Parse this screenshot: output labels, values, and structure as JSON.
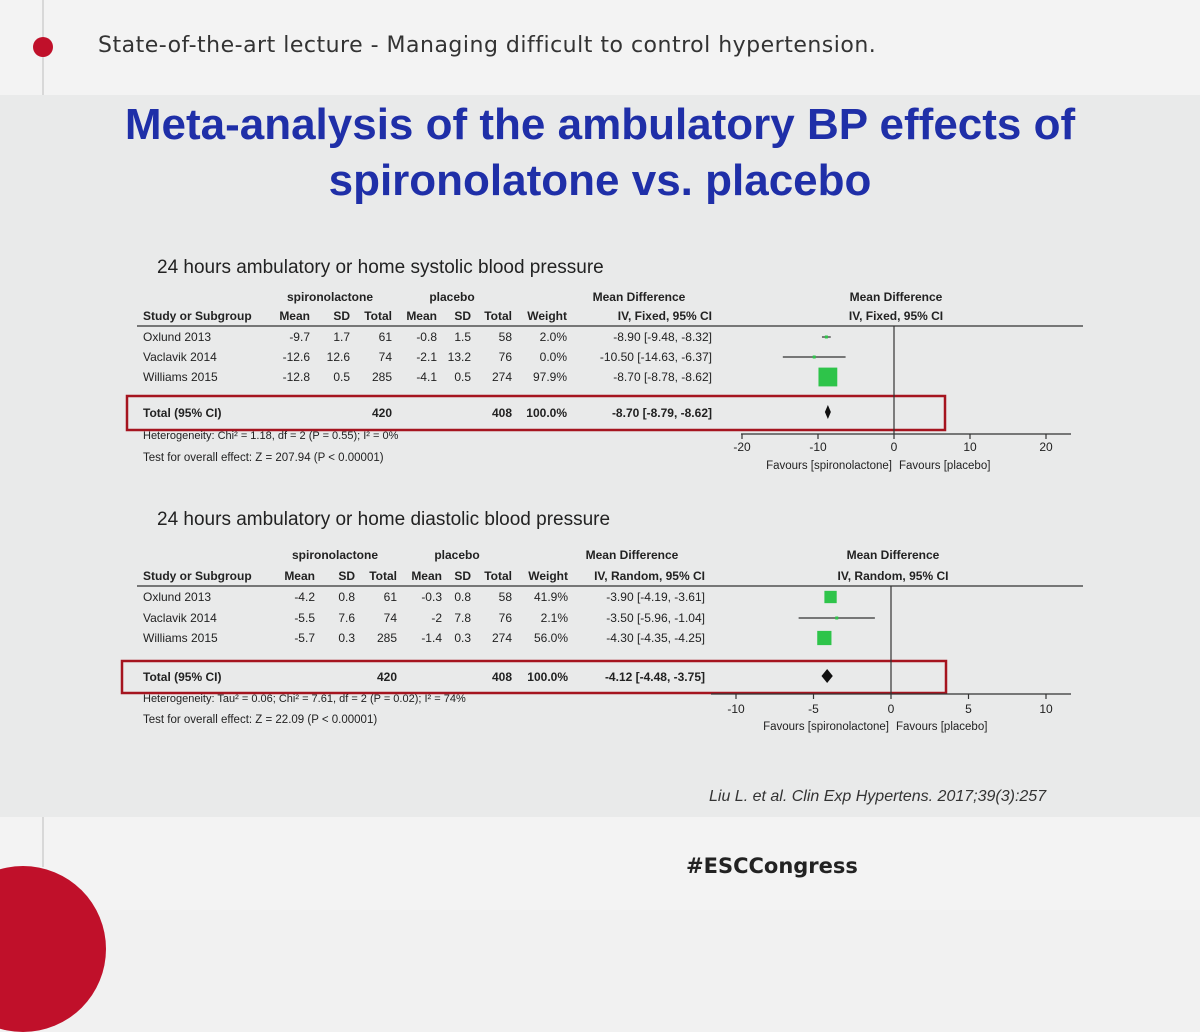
{
  "header": {
    "lecture_title": "State-of-the-art lecture - Managing difficult to control hypertension."
  },
  "slide": {
    "title_line1": "Meta-analysis of the ambulatory BP effects of",
    "title_line2": "spironolatone vs. placebo",
    "citation": "Liu L. et al. Clin Exp Hypertens. 2017;39(3):257"
  },
  "footer": {
    "hashtag": "#ESCCongress"
  },
  "colors": {
    "title_blue": "#1f2fa8",
    "accent_red": "#c0102a",
    "box_red": "#a5141f",
    "square_green": "#2ec44a"
  },
  "chart_data": [
    {
      "type": "table",
      "title": "24 hours ambulatory or home systolic blood pressure",
      "group_headers": {
        "experimental": "spironolactone",
        "control": "placebo",
        "effect": "Mean Difference",
        "plot": "Mean Difference"
      },
      "columns": [
        "Study or Subgroup",
        "Mean",
        "SD",
        "Total",
        "Mean",
        "SD",
        "Total",
        "Weight",
        "IV, Fixed, 95% CI"
      ],
      "plot_header": "IV, Fixed, 95% CI",
      "rows": [
        {
          "study": "Oxlund 2013",
          "exp_mean": "-9.7",
          "exp_sd": "1.7",
          "exp_total": "61",
          "ctl_mean": "-0.8",
          "ctl_sd": "1.5",
          "ctl_total": "58",
          "weight": "2.0%",
          "md_text": "-8.90 [-9.48, -8.32]",
          "md": -8.9,
          "lo": -9.48,
          "hi": -8.32,
          "w": 2.0
        },
        {
          "study": "Vaclavik 2014",
          "exp_mean": "-12.6",
          "exp_sd": "12.6",
          "exp_total": "74",
          "ctl_mean": "-2.1",
          "ctl_sd": "13.2",
          "ctl_total": "76",
          "weight": "0.0%",
          "md_text": "-10.50 [-14.63, -6.37]",
          "md": -10.5,
          "lo": -14.63,
          "hi": -6.37,
          "w": 0.0
        },
        {
          "study": "Williams 2015",
          "exp_mean": "-12.8",
          "exp_sd": "0.5",
          "exp_total": "285",
          "ctl_mean": "-4.1",
          "ctl_sd": "0.5",
          "ctl_total": "274",
          "weight": "97.9%",
          "md_text": "-8.70 [-8.78, -8.62]",
          "md": -8.7,
          "lo": -8.78,
          "hi": -8.62,
          "w": 97.9
        }
      ],
      "total": {
        "label": "Total (95% CI)",
        "exp_total": "420",
        "ctl_total": "408",
        "weight": "100.0%",
        "md_text": "-8.70 [-8.79, -8.62]",
        "md": -8.7,
        "lo": -8.79,
        "hi": -8.62
      },
      "heterogeneity": "Heterogeneity: Chi² = 1.18, df = 2 (P = 0.55); I² = 0%",
      "overall_effect": "Test for overall effect: Z = 207.94 (P < 0.00001)",
      "axis": {
        "ticks": [
          -20,
          -10,
          0,
          10,
          20
        ],
        "tick_labels": [
          "-20",
          "-10",
          "0",
          "10",
          "20"
        ],
        "xlim": [
          -20,
          20
        ]
      },
      "favours_left": "Favours [spironolactone]",
      "favours_right": "Favours [placebo]"
    },
    {
      "type": "table",
      "title": "24 hours ambulatory or home diastolic blood pressure",
      "group_headers": {
        "experimental": "spironolactone",
        "control": "placebo",
        "effect": "Mean Difference",
        "plot": "Mean Difference"
      },
      "columns": [
        "Study or Subgroup",
        "Mean",
        "SD",
        "Total",
        "Mean",
        "SD",
        "Total",
        "Weight",
        "IV, Random, 95% CI"
      ],
      "plot_header": "IV, Random, 95% CI",
      "rows": [
        {
          "study": "Oxlund 2013",
          "exp_mean": "-4.2",
          "exp_sd": "0.8",
          "exp_total": "61",
          "ctl_mean": "-0.3",
          "ctl_sd": "0.8",
          "ctl_total": "58",
          "weight": "41.9%",
          "md_text": "-3.90 [-4.19, -3.61]",
          "md": -3.9,
          "lo": -4.19,
          "hi": -3.61,
          "w": 41.9
        },
        {
          "study": "Vaclavik 2014",
          "exp_mean": "-5.5",
          "exp_sd": "7.6",
          "exp_total": "74",
          "ctl_mean": "-2",
          "ctl_sd": "7.8",
          "ctl_total": "76",
          "weight": "2.1%",
          "md_text": "-3.50 [-5.96, -1.04]",
          "md": -3.5,
          "lo": -5.96,
          "hi": -1.04,
          "w": 2.1
        },
        {
          "study": "Williams 2015",
          "exp_mean": "-5.7",
          "exp_sd": "0.3",
          "exp_total": "285",
          "ctl_mean": "-1.4",
          "ctl_sd": "0.3",
          "ctl_total": "274",
          "weight": "56.0%",
          "md_text": "-4.30 [-4.35, -4.25]",
          "md": -4.3,
          "lo": -4.35,
          "hi": -4.25,
          "w": 56.0
        }
      ],
      "total": {
        "label": "Total (95% CI)",
        "exp_total": "420",
        "ctl_total": "408",
        "weight": "100.0%",
        "md_text": "-4.12 [-4.48, -3.75]",
        "md": -4.12,
        "lo": -4.48,
        "hi": -3.75
      },
      "heterogeneity": "Heterogeneity: Tau² = 0.06; Chi² = 7.61, df = 2 (P = 0.02); I² = 74%",
      "overall_effect": "Test for overall effect: Z = 22.09 (P < 0.00001)",
      "axis": {
        "ticks": [
          -10,
          -5,
          0,
          5,
          10
        ],
        "tick_labels": [
          "-10",
          "-5",
          "0",
          "5",
          "10"
        ],
        "xlim": [
          -10,
          10
        ]
      },
      "favours_left": "Favours [spironolactone]",
      "favours_right": "Favours [placebo]"
    }
  ]
}
